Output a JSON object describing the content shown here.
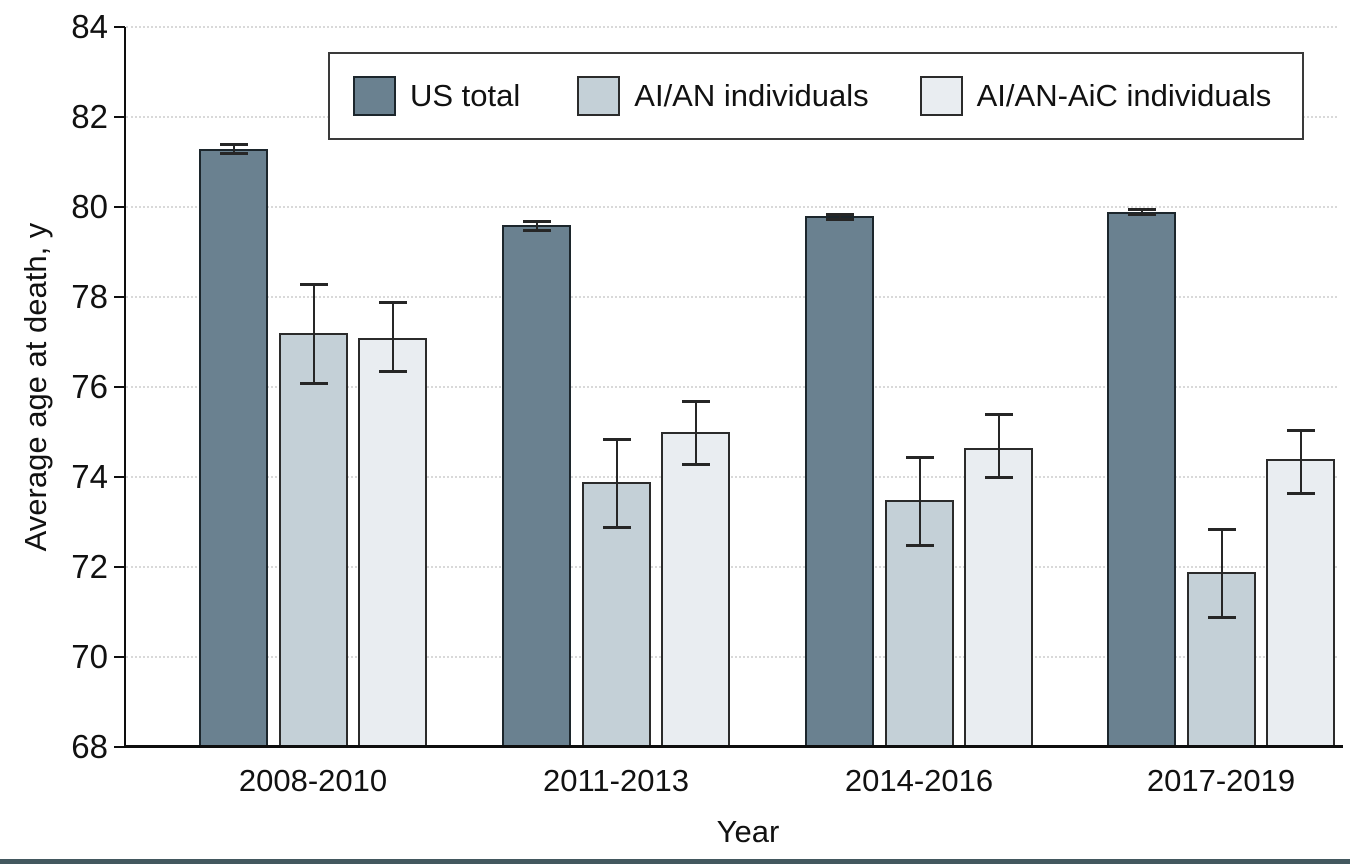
{
  "figure": {
    "background": "#ffffff",
    "bottom_bar_color": "#43585f",
    "axis_color": "#0e0e0e",
    "grid_color": "#d9d9d9",
    "error_bar_color": "#262626"
  },
  "chart_data": {
    "type": "bar",
    "title": "",
    "xlabel": "Year",
    "ylabel": "Average age at death, y",
    "categories": [
      "2008-2010",
      "2011-2013",
      "2014-2016",
      "2017-2019"
    ],
    "y_ticks": [
      84,
      82,
      80,
      78,
      76,
      74,
      72,
      70,
      68
    ],
    "ylim": [
      68,
      84
    ],
    "grid": "horizontal-dotted",
    "legend_position": "top-inside",
    "error_bars": "95% CI whiskers with caps",
    "series": [
      {
        "name": "US total",
        "color": "#6a8190",
        "border_color": "#1c262c",
        "values": [
          81.3,
          79.6,
          79.8,
          79.9
        ],
        "ci_low": [
          81.2,
          79.5,
          79.73,
          79.85
        ],
        "ci_high": [
          81.4,
          79.7,
          79.85,
          79.95
        ]
      },
      {
        "name": "AI/AN individuals",
        "color": "#c4d0d7",
        "border_color": "#2b2b2b",
        "values": [
          77.2,
          73.9,
          73.5,
          71.9
        ],
        "ci_low": [
          76.1,
          72.9,
          72.5,
          70.9
        ],
        "ci_high": [
          78.3,
          74.85,
          74.45,
          72.85
        ]
      },
      {
        "name": "AI/AN-AiC individuals",
        "color": "#e9edf1",
        "border_color": "#2b2b2b",
        "values": [
          77.1,
          75.0,
          74.65,
          74.4
        ],
        "ci_low": [
          76.35,
          74.3,
          74.0,
          73.65
        ],
        "ci_high": [
          77.9,
          75.7,
          75.4,
          75.05
        ]
      }
    ]
  }
}
